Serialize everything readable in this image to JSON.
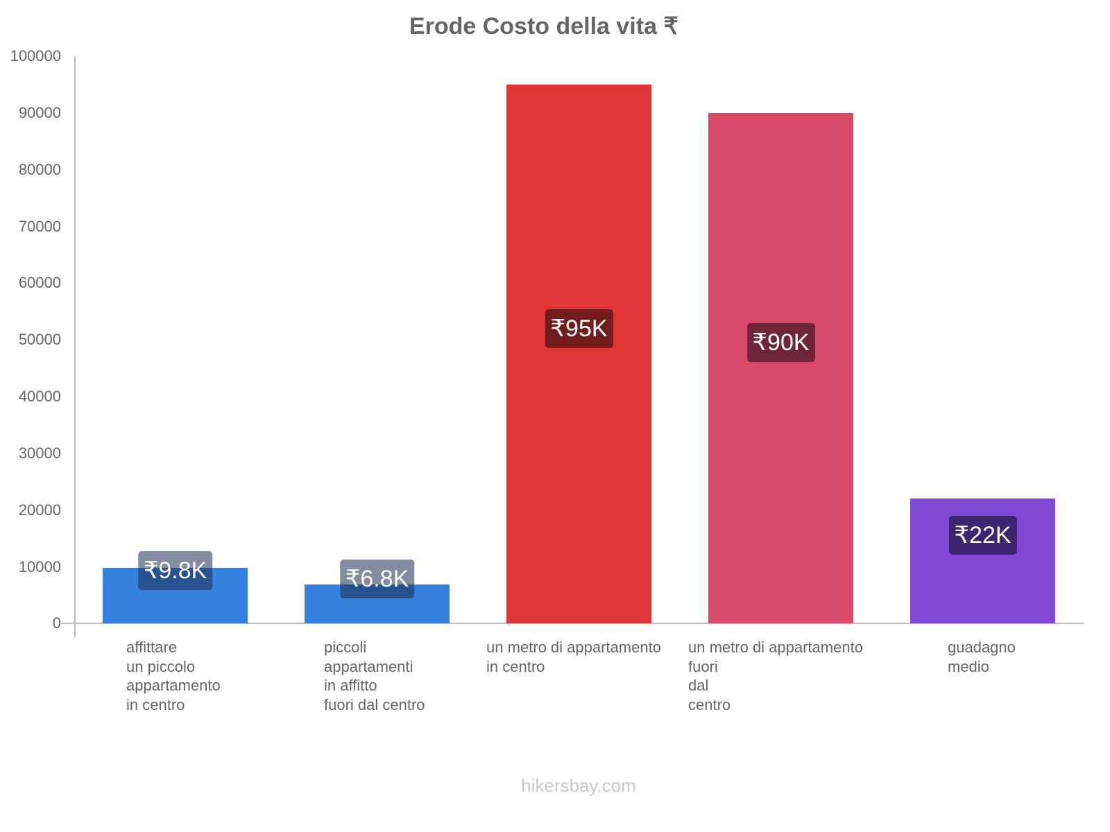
{
  "chart_data": {
    "type": "bar",
    "title": "Erode Costo della vita ₹",
    "xlabel": "",
    "ylabel": "",
    "ylim": [
      0,
      100000
    ],
    "grid": false,
    "legend": null,
    "y_ticks": [
      "100000",
      "90000",
      "80000",
      "70000",
      "60000",
      "50000",
      "40000",
      "30000",
      "20000",
      "10000",
      "0"
    ],
    "categories": [
      "affittare un piccolo appartamento in centro",
      "piccoli appartamenti in affitto fuori dal centro",
      "un metro di appartamento in centro",
      "un metro di appartamento fuori dal centro",
      "guadagno medio"
    ],
    "category_lines": [
      [
        "affittare",
        "un piccolo",
        "appartamento",
        "in centro"
      ],
      [
        "piccoli",
        "appartamenti",
        "in affitto",
        "fuori dal centro"
      ],
      [
        "un metro di appartamento",
        "in centro"
      ],
      [
        "un metro di appartamento",
        "fuori",
        "dal",
        "centro"
      ],
      [
        "guadagno",
        "medio"
      ]
    ],
    "values": [
      9800,
      6800,
      95000,
      90000,
      22000
    ],
    "data_labels": [
      "₹9.8K",
      "₹6.8K",
      "₹95K",
      "₹90K",
      "₹22K"
    ],
    "colors": [
      "#3581dc",
      "#3581dc",
      "#e03535",
      "#d84a68",
      "#8049d5"
    ],
    "label_bg_colors": [
      "rgba(25,45,80,0.55)",
      "rgba(25,45,80,0.55)",
      "#721c1c",
      "#6f2537",
      "#3f2470"
    ]
  },
  "watermark": "hikersbay.com"
}
